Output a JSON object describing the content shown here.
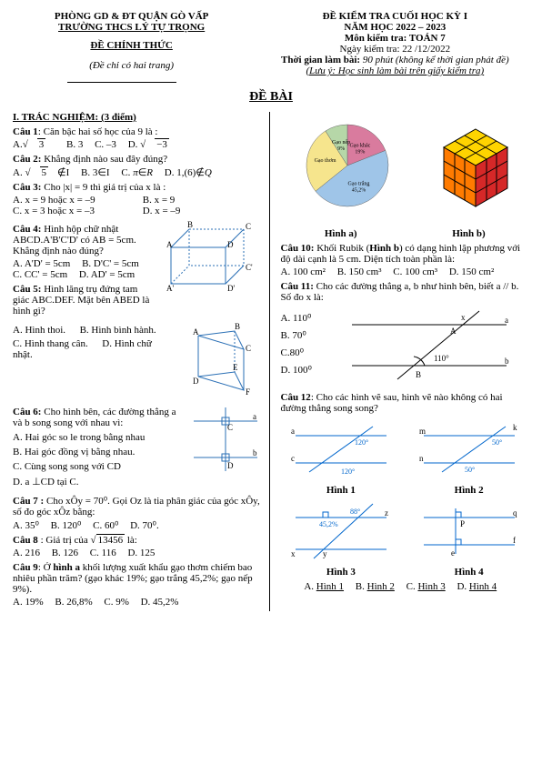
{
  "header": {
    "dept": "PHÒNG GD & ĐT QUẬN GÒ VẤP",
    "school": "TRƯỜNG THCS LÝ TỰ TRỌNG",
    "official": "ĐỀ  CHÍNH THỨC",
    "note_pages": "(Đề chỉ có hai trang)",
    "exam_title": "ĐỀ KIỂM TRA CUỐI  HỌC KỲ I",
    "year": "NĂM HỌC 2022 – 2023",
    "subject": "Môn kiểm tra: TOÁN 7",
    "date": "Ngày kiểm tra: 22 /12/2022",
    "time_lbl": "Thời gian làm bài:",
    "time_val": " 90 phút (không kể thời gian phát đề)",
    "note_do": "(Lưu ý: Học sinh làm bài trên giấy kiểm tra)"
  },
  "title": "ĐỀ BÀI",
  "sec1": "I. TRÁC NGHIỆM: (3 điểm)",
  "c1": {
    "t": "Câu 1",
    "q": ": Căn bậc hai số học của 9 là :",
    "a": "A.",
    "av": "√3",
    "b": "B. 3",
    "c": "C. –3",
    "d": "D.",
    "dv": "√−3"
  },
  "c2": {
    "t": "Câu 2:",
    "q": " Khẳng định nào sau đây đúng?",
    "a": "A. √5∉I",
    "b": "B. 3∈I",
    "c": "C. π∈R",
    "d": "D. 1,(6)∉Q"
  },
  "c3": {
    "t": "Câu 3:",
    "q": " Cho |x| = 9 thì giá trị của x là :",
    "a": "A.  x = 9 hoặc x = –9",
    "b": "B. x = 9",
    "c": "C. x = 3 hoặc x = –3",
    "d": "D. x = –9"
  },
  "c4": {
    "t": "Câu 4:",
    "q": " Hình hộp chữ nhật ABCD.A'B'C'D' có AB = 5cm. Khẳng định nào đúng?",
    "a": "A. A'D' = 5cm",
    "b": "B. D'C' = 5cm",
    "c": "C. CC' = 5cm",
    "d": "D. AD' = 5cm"
  },
  "c5": {
    "t": "Câu 5:",
    "q": " Hình lăng trụ đứng tam giác ABC.DEF. Mặt bên ABED là hình gì?",
    "a": "A. Hình thoi.",
    "b": "B. Hình bình hành.",
    "c": "C. Hình thang cân.",
    "d": "D. Hình chữ nhật."
  },
  "c6": {
    "t": "Câu 6:",
    "q": " Cho hình bên, các đường thẳng a và b song song với nhau vì:",
    "a": "A. Hai góc so le trong  bằng nhau",
    "b": "B. Hai góc đồng vị bằng nhau.",
    "c": "C. Cùng song song với CD",
    "d": "D. a ⊥CD tại C."
  },
  "c7": {
    "t": "Câu 7 :",
    "q": " Cho  xÔy = 70⁰. Gọi Oz là tia phân giác của góc xÔy, số đo góc xÔz bằng:",
    "a": "A. 35⁰",
    "b": "B. 120⁰",
    "c": "C. 60⁰",
    "d": "D. 70⁰."
  },
  "c8": {
    "t": "Câu 8",
    "q": " : Giá trị của √13456 là:",
    "a": "A. 216",
    "b": "B. 126",
    "c": "C. 116",
    "d": "D. 125"
  },
  "c9": {
    "t": "Câu 9",
    "q": ": Ở hình a khối lượng xuất khẩu gạo thơm chiếm bao nhiêu phần trăm? (gạo khác 19%; gạo trắng 45,2%; gạo nếp 9%).",
    "a": "A. 19%",
    "b": "B. 26,8%",
    "c": "C. 9%",
    "d": "D. 45,2%"
  },
  "pie": {
    "slices": [
      {
        "label": "Gạo khác",
        "pct": "19%",
        "color": "#d97b9e",
        "start": -90,
        "end": -21.6
      },
      {
        "label": "Gạo trắng",
        "pct": "45,2%",
        "color": "#9fc5e8",
        "start": -21.6,
        "end": 141.12
      },
      {
        "label": "Gạo thơm",
        "pct": "",
        "color": "#f6e58d",
        "start": 141.12,
        "end": 237.6
      },
      {
        "label": "Gạo nếp",
        "pct": "9%",
        "color": "#b6d7a8",
        "start": 237.6,
        "end": 270
      }
    ],
    "caption": "Hình a)"
  },
  "rubik": {
    "caption": "Hình b)",
    "colors": {
      "top": "#ffd400",
      "right": "#d62828",
      "front": "#ff7b00",
      "edge": "#000"
    }
  },
  "c10": {
    "t": "Câu 10:",
    "q": " Khối Rubik (Hình b) có dạng hình lập phương với độ dài cạnh là 5 cm. Diện tích toàn phần là:",
    "a": "A. 100 cm²",
    "b": "B. 150 cm³",
    "c": "C. 100 cm³",
    "d": "D. 150 cm²"
  },
  "c11": {
    "t": "Câu 11:",
    "q": " Cho các đường thẳng a, b như hình bên, biết a // b. Số đo x là:",
    "a": "A. 110⁰",
    "b": "B. 70⁰",
    "c": "C.80⁰",
    "d": "D. 100⁰",
    "ang": "110°"
  },
  "c12": {
    "t": "Câu 12",
    "q": ": Cho các hình vẽ sau, hình vẽ nào không có hai đường thẳng song song?",
    "h1": "Hình 1",
    "h2": "Hình 2",
    "h3": "Hình 3",
    "h4": "Hình 4",
    "a": "A. Hình 1",
    "b": "B. Hình 2",
    "c": "C. Hình 3",
    "d": "D. Hình 4",
    "ang1": "120°",
    "ang2a": "50°",
    "ang2b": "50°",
    "ang3a": "45,2%",
    "ang3b": "88°"
  }
}
